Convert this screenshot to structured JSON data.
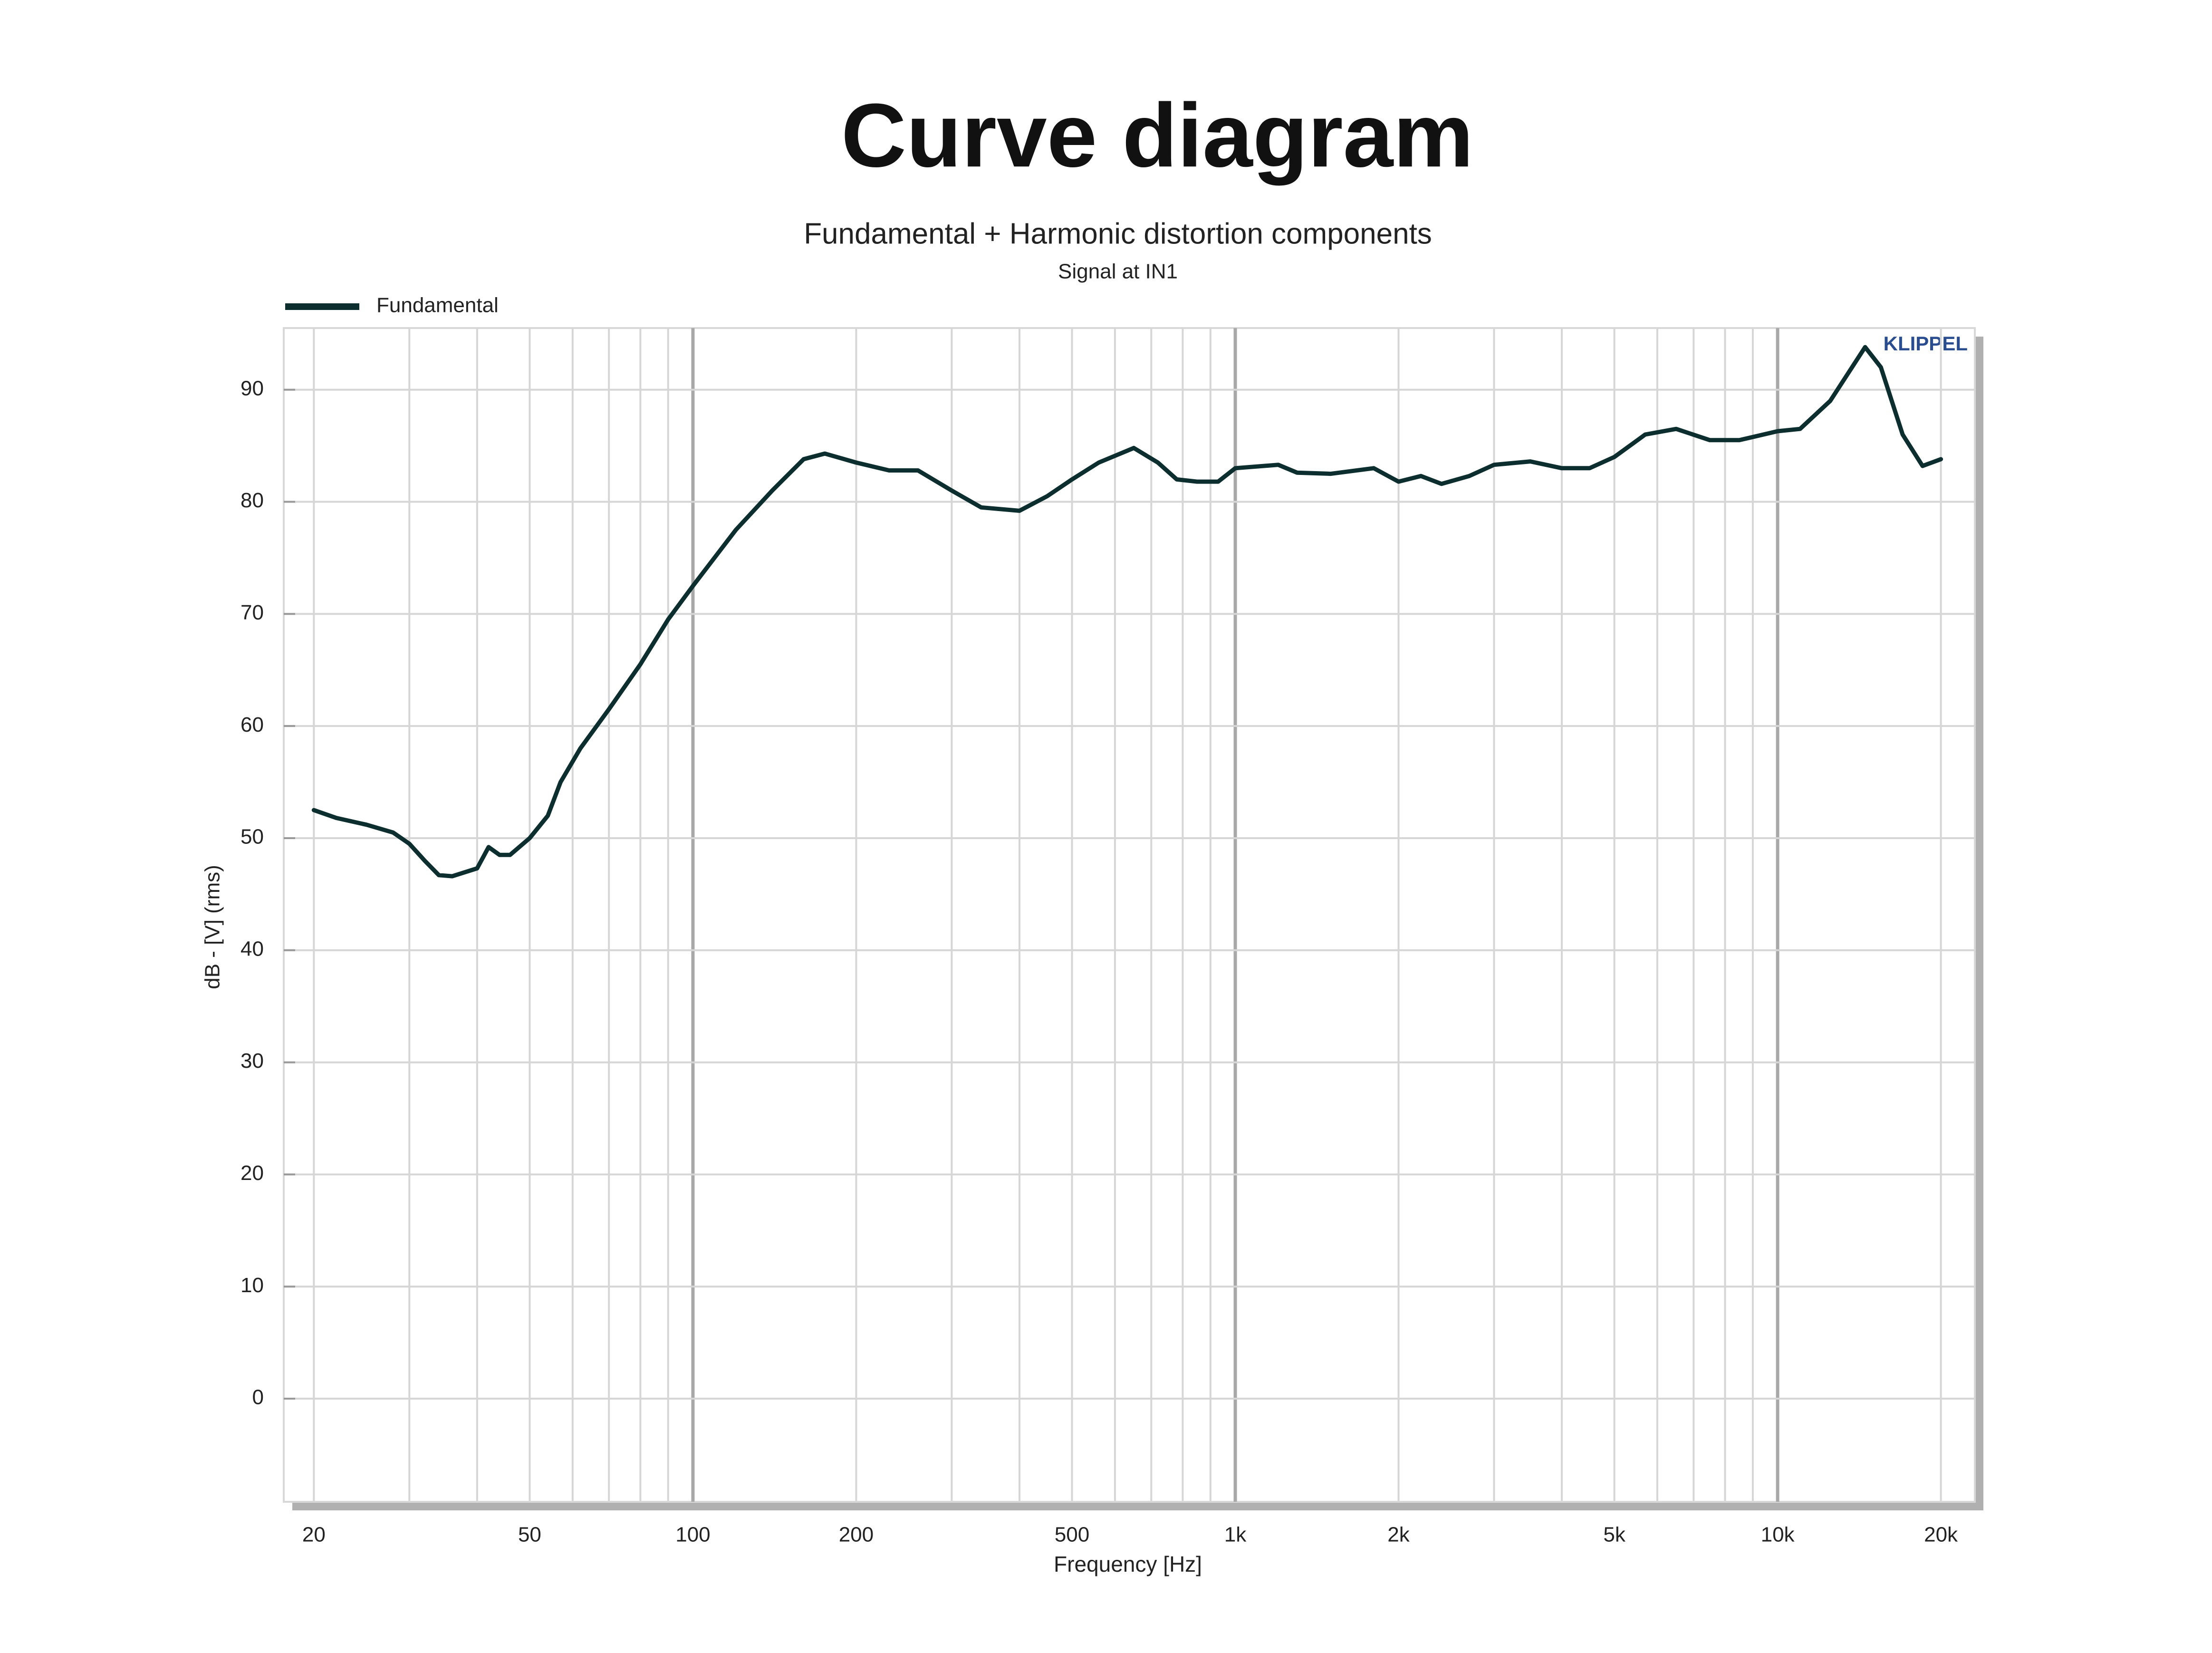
{
  "chart_data": {
    "type": "line",
    "title": "Curve diagram",
    "subtitle": "Fundamental + Harmonic distortion components",
    "note": "Signal at IN1",
    "watermark": "KLIPPEL",
    "x_label": "Frequency [Hz]",
    "y_label": "dB - [V]  (rms)",
    "x_scale": "log",
    "grid": true,
    "legend": "top-left",
    "x": [
      20,
      22,
      25,
      28,
      30,
      32,
      34,
      36,
      40,
      42,
      44,
      46,
      50,
      54,
      57,
      62,
      70,
      80,
      90,
      100,
      120,
      140,
      160,
      175,
      200,
      230,
      260,
      300,
      340,
      400,
      450,
      500,
      560,
      650,
      720,
      780,
      850,
      930,
      1000,
      1200,
      1300,
      1500,
      1800,
      2000,
      2200,
      2400,
      2700,
      3000,
      3500,
      4000,
      4500,
      5000,
      5700,
      6500,
      7500,
      8500,
      10000,
      11000,
      12500,
      14500,
      15500,
      17000,
      18500,
      20000
    ],
    "series": [
      {
        "name": "Fundamental",
        "color": "#0d2e2e",
        "values": [
          52.5,
          51.8,
          51.2,
          50.5,
          49.5,
          48,
          46.7,
          46.6,
          47.3,
          49.2,
          48.5,
          48.5,
          50,
          52,
          55,
          58,
          61.5,
          65.5,
          69.5,
          72.5,
          77.5,
          81,
          83.8,
          84.3,
          83.5,
          82.8,
          82.8,
          81,
          79.5,
          79.2,
          80.5,
          82,
          83.5,
          84.8,
          83.5,
          82,
          81.8,
          81.8,
          83,
          83.3,
          82.6,
          82.5,
          83,
          81.8,
          82.3,
          81.6,
          82.3,
          83.3,
          83.6,
          83,
          83,
          84,
          86,
          86.5,
          85.5,
          85.5,
          86.3,
          86.5,
          89,
          93.8,
          92,
          86,
          83.2,
          83.8
        ]
      }
    ],
    "xlim": [
      17.6,
      23100
    ],
    "ylim": [
      -9.2,
      95.5
    ],
    "xticks": [
      20,
      50,
      100,
      200,
      500,
      {
        "value": 1000,
        "label": "1k"
      },
      {
        "value": 2000,
        "label": "2k"
      },
      {
        "value": 5000,
        "label": "5k"
      },
      {
        "value": 10000,
        "label": "10k"
      },
      {
        "value": 20000,
        "label": "20k"
      }
    ],
    "x_minor_grid": [
      30,
      40,
      60,
      70,
      80,
      90,
      300,
      400,
      600,
      700,
      800,
      900,
      3000,
      4000,
      6000,
      7000,
      8000,
      9000
    ],
    "yticks": [
      0,
      10,
      20,
      30,
      40,
      50,
      60,
      70,
      80,
      90
    ]
  }
}
